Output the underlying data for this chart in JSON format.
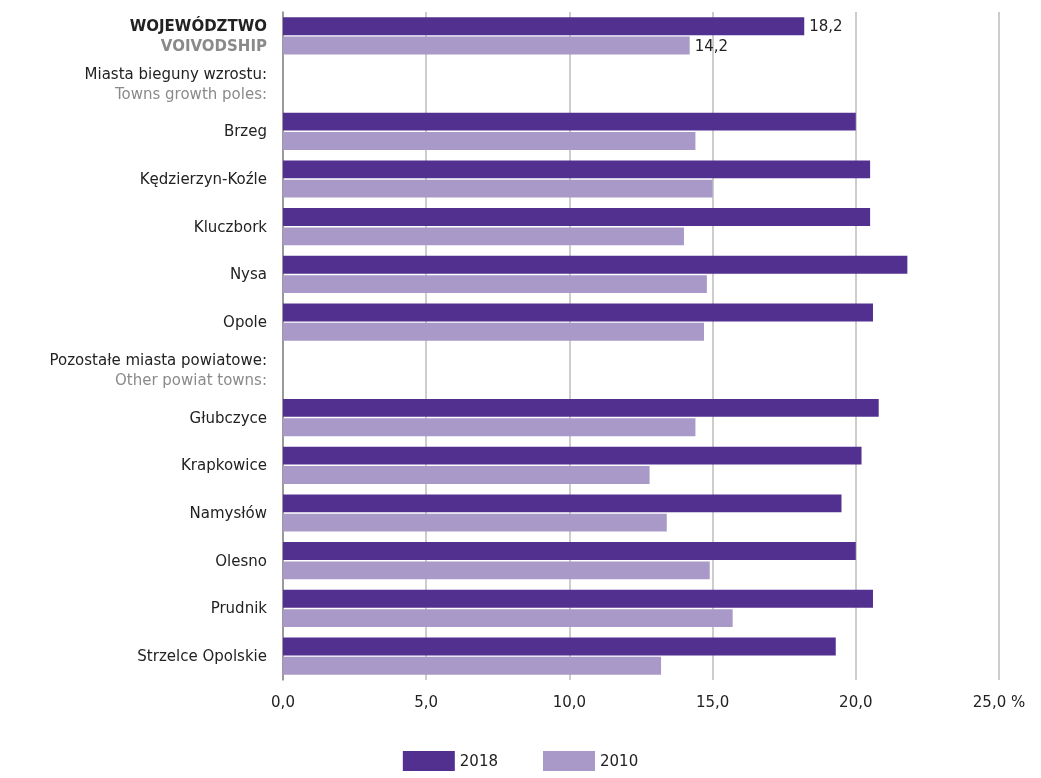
{
  "chart_data": {
    "type": "bar",
    "orientation": "horizontal",
    "categories": [
      "WOJEWÓDZTWO\nVOIVODSHIP",
      null,
      "Brzeg",
      "Kędzierzyn-Koźle",
      "Kluczbork",
      "Nysa",
      "Opole",
      null,
      "Głubczyce",
      "Krapkowice",
      "Namysłów",
      "Olesno",
      "Prudnik",
      "Strzelce Opolskie"
    ],
    "series": [
      {
        "name": "2018",
        "color": "#52308f",
        "values": [
          18.2,
          null,
          20.0,
          20.5,
          20.5,
          21.8,
          20.6,
          null,
          20.8,
          20.2,
          19.5,
          20.0,
          20.6,
          19.3
        ],
        "value_labels": [
          "18,2",
          null,
          null,
          null,
          null,
          null,
          null,
          null,
          null,
          null,
          null,
          null,
          null,
          null
        ]
      },
      {
        "name": "2010",
        "color": "#a999c8",
        "values": [
          14.2,
          null,
          14.4,
          15.0,
          14.0,
          14.8,
          14.7,
          null,
          14.4,
          12.8,
          13.4,
          14.9,
          15.7,
          13.2
        ],
        "value_labels": [
          "14,2",
          null,
          null,
          null,
          null,
          null,
          null,
          null,
          null,
          null,
          null,
          null,
          null,
          null
        ]
      }
    ],
    "xlim": [
      0,
      25
    ],
    "xticks": [
      {
        "value": 0,
        "label": "0,0"
      },
      {
        "value": 5,
        "label": "5,0"
      },
      {
        "value": 10,
        "label": "10,0"
      },
      {
        "value": 15,
        "label": "15,0"
      },
      {
        "value": 20,
        "label": "20,0"
      },
      {
        "value": 25,
        "label": "25,0 %"
      }
    ],
    "annotations": [
      "Miasta bieguny wzrostu:\nTowns growth poles:",
      "Pozostałe miasta powiatowe:\nOther powiat towns:"
    ],
    "grid": "x",
    "legend": "bottom"
  }
}
